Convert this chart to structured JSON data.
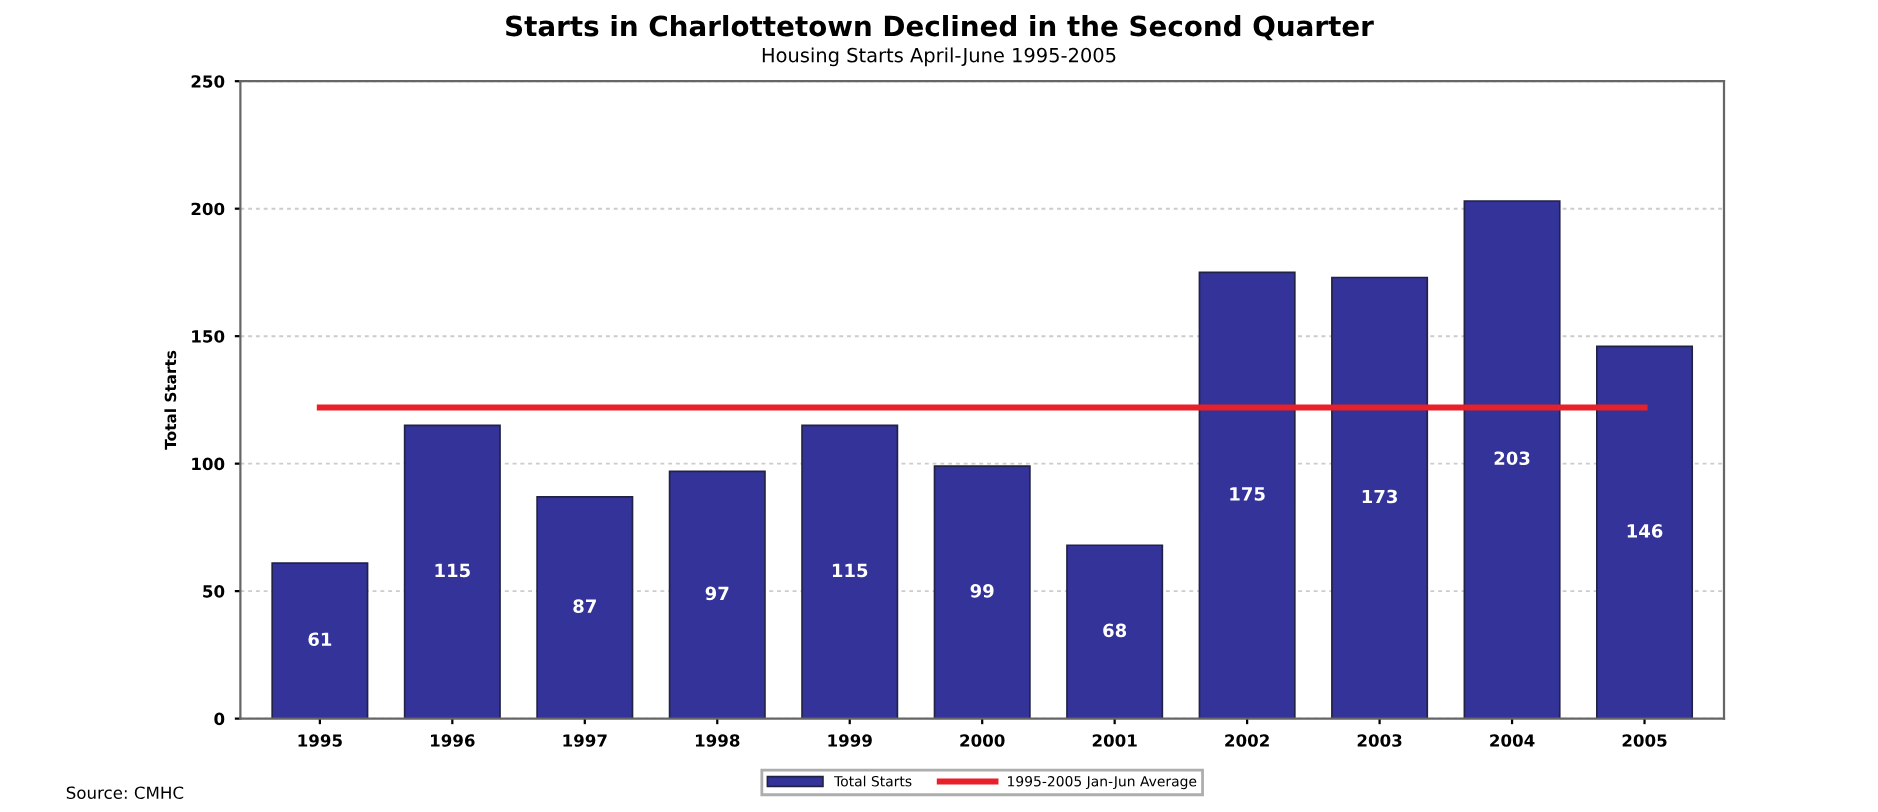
{
  "chart_data": {
    "type": "bar",
    "title": "Starts in Charlottetown Declined in the Second Quarter",
    "subtitle": "Housing Starts April-June 1995-2005",
    "ylabel": "Total Starts",
    "categories": [
      "1995",
      "1996",
      "1997",
      "1998",
      "1999",
      "2000",
      "2001",
      "2002",
      "2003",
      "2004",
      "2005"
    ],
    "series": [
      {
        "name": "Total Starts",
        "color": "#333399",
        "values": [
          61,
          115,
          87,
          97,
          115,
          99,
          68,
          175,
          173,
          203,
          146
        ],
        "value_labels": [
          "61",
          "115",
          "87",
          "97",
          "115",
          "99",
          "68",
          "175",
          "173",
          "203",
          "146"
        ]
      },
      {
        "name": "1995-2005 Jan-Jun Average",
        "type": "line",
        "color": "#e8202a",
        "values": [
          122,
          122,
          122,
          122,
          122,
          122,
          122,
          122,
          122,
          122,
          122
        ]
      }
    ],
    "ylim": [
      0,
      250
    ],
    "yticks": [
      0,
      50,
      100,
      150,
      200,
      250
    ],
    "grid": "y",
    "legend": "bottom",
    "marker": "none",
    "line_style": "solid",
    "annotations": [
      "Source: CMHC"
    ]
  }
}
